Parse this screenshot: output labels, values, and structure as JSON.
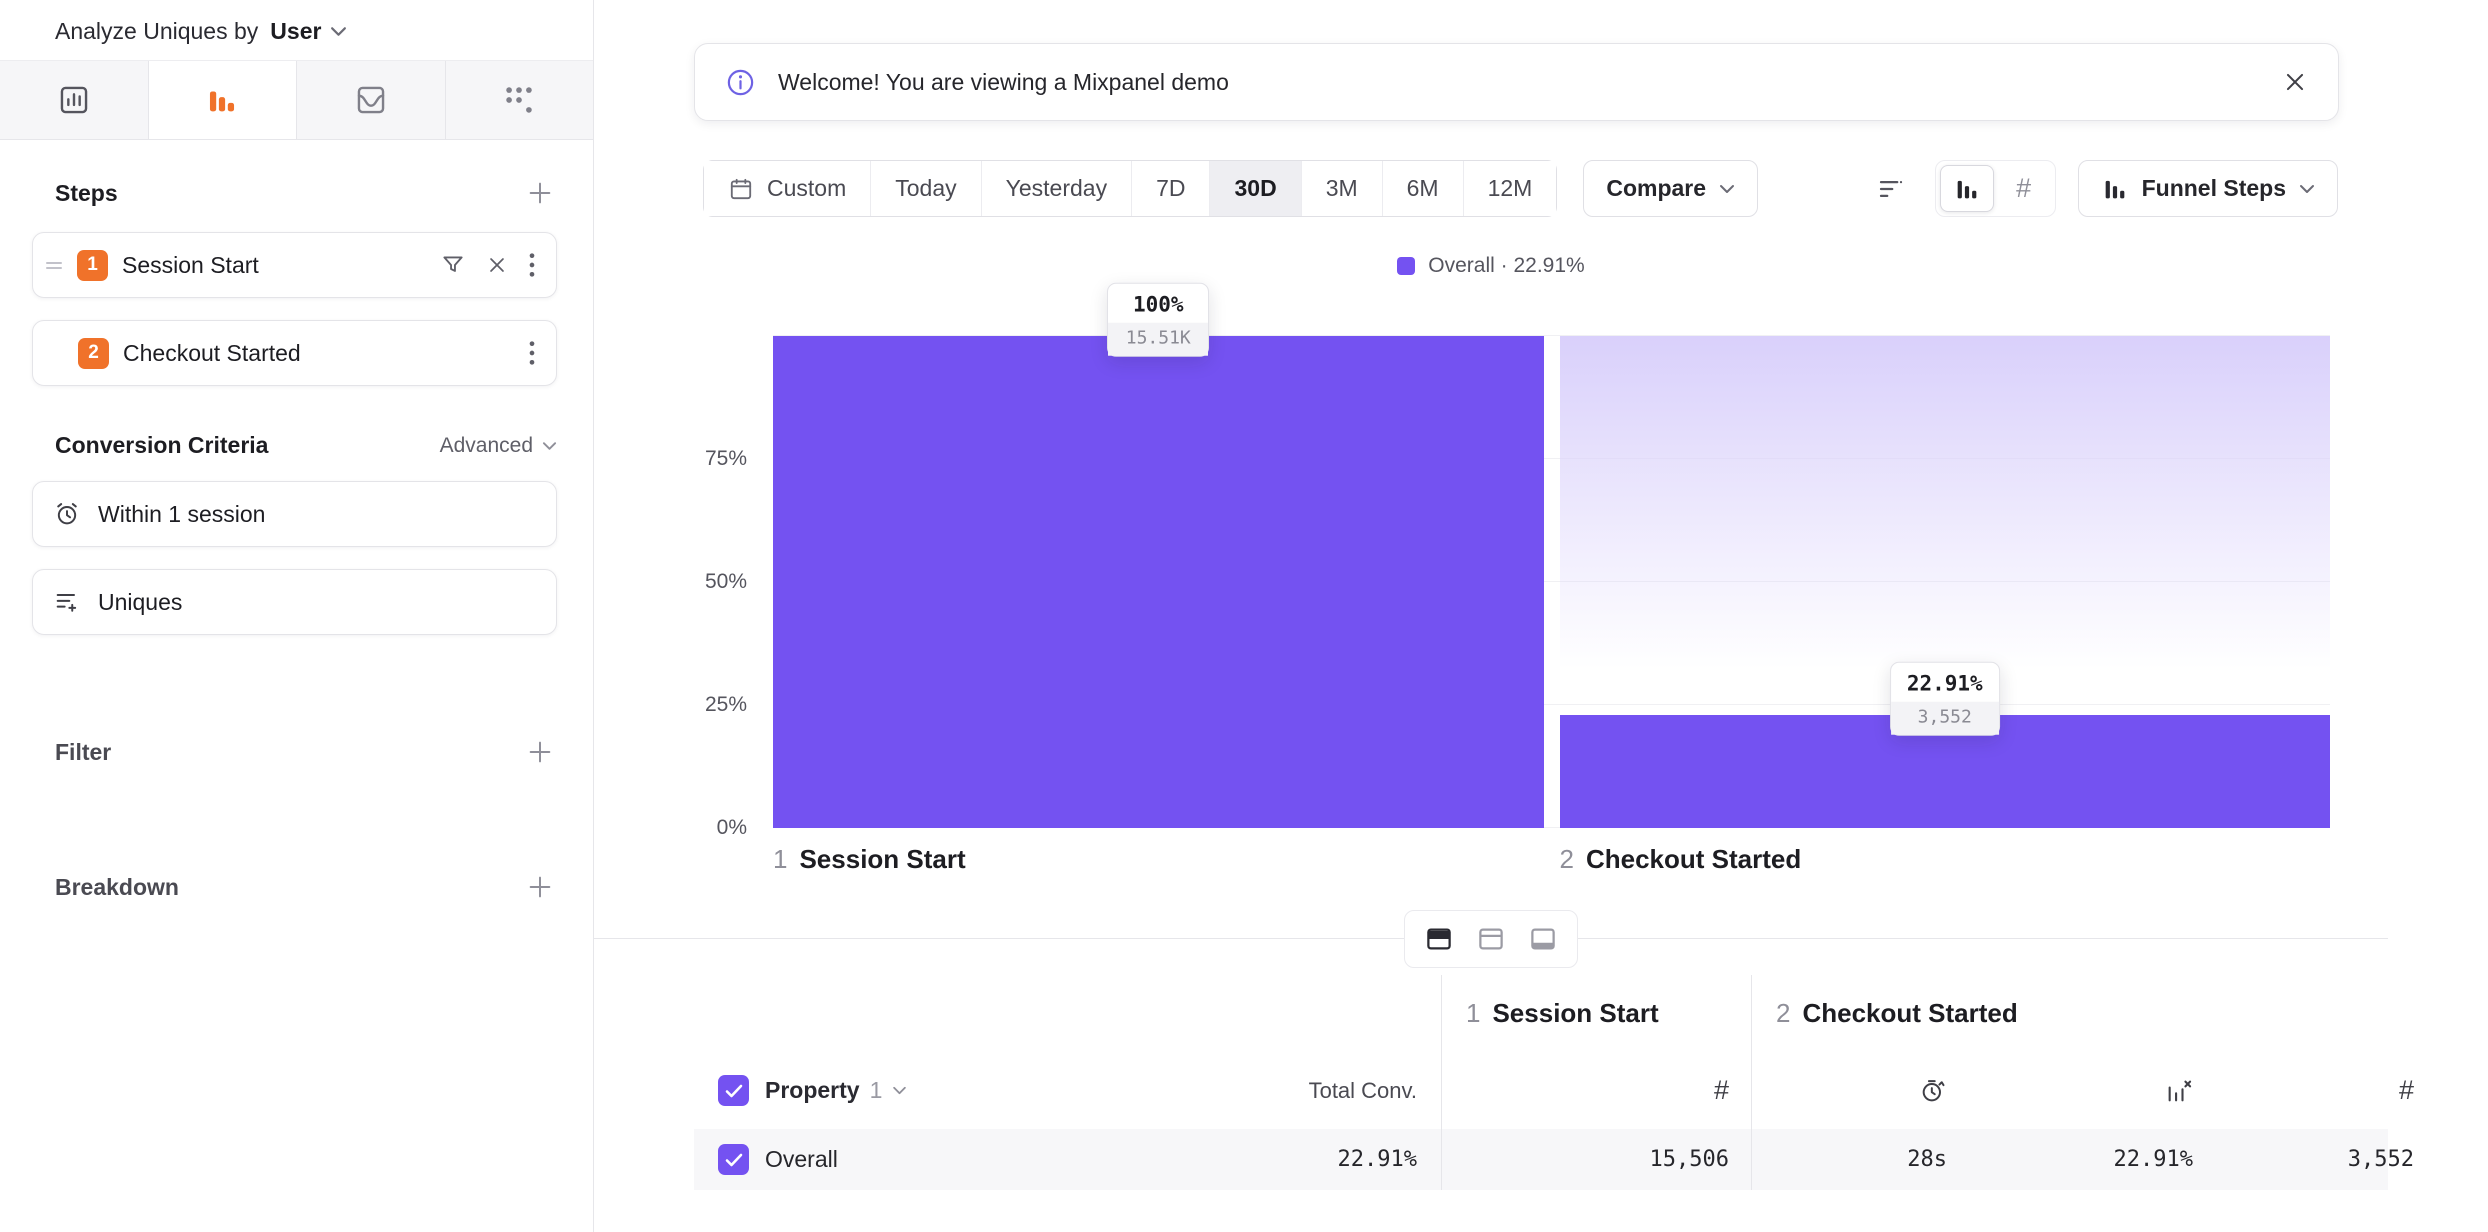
{
  "colors": {
    "accent": "#7452f1",
    "orange": "#f0722a"
  },
  "sidebar": {
    "analyze_label": "Analyze Uniques by",
    "analyze_value": "User",
    "tabs": [
      {
        "icon": "insights-chart"
      },
      {
        "icon": "funnels",
        "selected": true
      },
      {
        "icon": "retention"
      },
      {
        "icon": "flows"
      }
    ],
    "steps_title": "Steps",
    "steps": [
      {
        "num": "1",
        "label": "Session Start"
      },
      {
        "num": "2",
        "label": "Checkout Started"
      }
    ],
    "conversion_title": "Conversion Criteria",
    "advanced_label": "Advanced",
    "criteria": [
      {
        "icon": "alarm-clock",
        "label": "Within 1 session"
      },
      {
        "icon": "uniques-lines",
        "label": "Uniques"
      }
    ],
    "filter_label": "Filter",
    "breakdown_label": "Breakdown"
  },
  "banner": {
    "text": "Welcome! You are viewing a Mixpanel demo"
  },
  "toolbar": {
    "ranges": [
      "Custom",
      "Today",
      "Yesterday",
      "7D",
      "30D",
      "3M",
      "6M",
      "12M"
    ],
    "selected_range": "30D",
    "compare_label": "Compare",
    "funnel_steps_label": "Funnel Steps"
  },
  "chart_data": {
    "type": "funnel-bar",
    "legend": "Overall · 22.91%",
    "yticks": [
      "75%",
      "50%",
      "25%",
      "0%"
    ],
    "ylim": [
      0,
      100
    ],
    "grid": true,
    "bar_color": "#7452f1",
    "steps": [
      {
        "index": "1",
        "label": "Session Start",
        "pct": 100,
        "rate": "100%",
        "count": 15506,
        "count_label": "15.51K"
      },
      {
        "index": "2",
        "label": "Checkout Started",
        "pct": 22.91,
        "rate": "22.91%",
        "count": 3552,
        "count_label": "3,552"
      }
    ]
  },
  "table": {
    "groups": [
      {
        "num": "1",
        "label": "Session Start"
      },
      {
        "num": "2",
        "label": "Checkout Started"
      }
    ],
    "property_label": "Property",
    "property_index": "1",
    "total_header": "Total Conv.",
    "rows": [
      {
        "name": "Overall",
        "total_conv": "22.91%",
        "step1_count": "15,506",
        "step2_avg_time": "28s",
        "step2_conv": "22.91%",
        "step2_count": "3,552"
      }
    ]
  }
}
